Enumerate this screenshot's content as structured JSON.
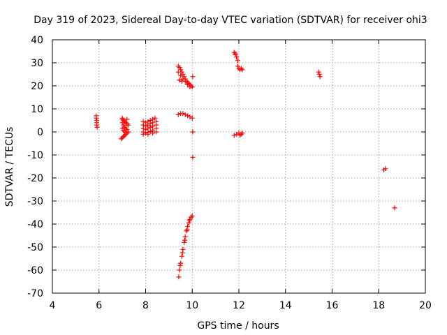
{
  "chart_data": {
    "type": "scatter",
    "title": "Day 319 of 2023, Sidereal Day-to-day VTEC variation (SDTVAR) for receiver ohi3",
    "xlabel": "GPS time / hours",
    "ylabel": "SDTVAR / TECUs",
    "xlim": [
      4,
      20
    ],
    "ylim": [
      -70,
      40
    ],
    "xticks": [
      "4",
      "6",
      "8",
      "10",
      "12",
      "14",
      "16",
      "18",
      "20"
    ],
    "yticks": [
      "40",
      "30",
      "20",
      "10",
      "0",
      "-10",
      "-20",
      "-30",
      "-40",
      "-50",
      "-60",
      "-70"
    ],
    "grid": true,
    "marker": "+",
    "color": "#ff0000",
    "series": [
      {
        "points": [
          [
            5.88,
            7.0
          ],
          [
            5.88,
            6.0
          ],
          [
            5.9,
            5.0
          ],
          [
            5.9,
            4.0
          ],
          [
            5.9,
            3.0
          ],
          [
            5.92,
            2.0
          ],
          [
            7.0,
            5.5
          ],
          [
            7.05,
            5.0
          ],
          [
            7.1,
            4.5
          ],
          [
            7.15,
            4.0
          ],
          [
            7.2,
            3.5
          ],
          [
            7.25,
            3.0
          ],
          [
            7.0,
            4.0
          ],
          [
            7.05,
            3.0
          ],
          [
            7.1,
            2.0
          ],
          [
            7.15,
            1.5
          ],
          [
            7.2,
            1.0
          ],
          [
            7.0,
            1.5
          ],
          [
            7.05,
            0.5
          ],
          [
            7.1,
            0.0
          ],
          [
            6.95,
            -3.0
          ],
          [
            7.0,
            -2.5
          ],
          [
            7.05,
            -2.0
          ],
          [
            7.1,
            -1.5
          ],
          [
            7.15,
            -1.0
          ],
          [
            7.2,
            -0.5
          ],
          [
            7.25,
            0.0
          ],
          [
            7.0,
            6.0
          ],
          [
            7.2,
            5.5
          ],
          [
            7.9,
            4.5
          ],
          [
            8.0,
            4.0
          ],
          [
            8.1,
            4.5
          ],
          [
            8.2,
            5.0
          ],
          [
            8.3,
            5.5
          ],
          [
            8.4,
            6.0
          ],
          [
            7.9,
            3.0
          ],
          [
            8.0,
            2.5
          ],
          [
            8.1,
            3.0
          ],
          [
            8.2,
            3.5
          ],
          [
            8.3,
            4.0
          ],
          [
            8.45,
            4.5
          ],
          [
            7.9,
            1.5
          ],
          [
            8.0,
            1.0
          ],
          [
            8.1,
            1.5
          ],
          [
            8.2,
            2.0
          ],
          [
            8.3,
            2.5
          ],
          [
            8.45,
            3.0
          ],
          [
            7.9,
            0.0
          ],
          [
            8.0,
            -0.5
          ],
          [
            8.1,
            -0.2
          ],
          [
            8.2,
            0.2
          ],
          [
            8.3,
            0.8
          ],
          [
            8.45,
            1.5
          ],
          [
            7.9,
            -1.0
          ],
          [
            8.1,
            -1.0
          ],
          [
            8.3,
            -0.5
          ],
          [
            8.45,
            0.0
          ],
          [
            9.4,
            28.5
          ],
          [
            9.45,
            28.0
          ],
          [
            9.5,
            27.0
          ],
          [
            9.55,
            26.0
          ],
          [
            9.6,
            25.0
          ],
          [
            9.65,
            24.0
          ],
          [
            9.7,
            23.0
          ],
          [
            9.75,
            22.0
          ],
          [
            9.8,
            21.5
          ],
          [
            9.85,
            21.0
          ],
          [
            9.9,
            20.5
          ],
          [
            9.95,
            20.0
          ],
          [
            10.0,
            19.5
          ],
          [
            9.4,
            26.0
          ],
          [
            9.5,
            24.5
          ],
          [
            9.6,
            23.0
          ],
          [
            9.7,
            22.0
          ],
          [
            9.8,
            20.5
          ],
          [
            9.9,
            19.5
          ],
          [
            9.45,
            22.5
          ],
          [
            9.55,
            22.0
          ],
          [
            10.02,
            24.0
          ],
          [
            9.4,
            7.5
          ],
          [
            9.5,
            8.0
          ],
          [
            9.6,
            8.0
          ],
          [
            9.7,
            7.5
          ],
          [
            9.8,
            7.0
          ],
          [
            9.9,
            6.5
          ],
          [
            10.0,
            6.0
          ],
          [
            10.02,
            0.0
          ],
          [
            10.02,
            -11.0
          ],
          [
            9.42,
            -63.0
          ],
          [
            9.45,
            -60.0
          ],
          [
            9.5,
            -57.0
          ],
          [
            9.55,
            -54.0
          ],
          [
            9.6,
            -51.0
          ],
          [
            9.65,
            -48.0
          ],
          [
            9.7,
            -45.5
          ],
          [
            9.75,
            -43.0
          ],
          [
            9.8,
            -41.0
          ],
          [
            9.85,
            -39.5
          ],
          [
            9.9,
            -38.0
          ],
          [
            9.95,
            -37.0
          ],
          [
            10.0,
            -36.5
          ],
          [
            9.48,
            -58.0
          ],
          [
            9.58,
            -52.5
          ],
          [
            9.68,
            -47.0
          ],
          [
            9.78,
            -42.5
          ],
          [
            9.88,
            -38.5
          ],
          [
            11.8,
            34.5
          ],
          [
            11.85,
            33.5
          ],
          [
            11.9,
            32.5
          ],
          [
            11.95,
            31.0
          ],
          [
            11.85,
            34.0
          ],
          [
            11.95,
            28.5
          ],
          [
            12.0,
            27.5
          ],
          [
            12.05,
            27.0
          ],
          [
            12.1,
            27.5
          ],
          [
            12.15,
            27.0
          ],
          [
            11.8,
            -1.5
          ],
          [
            11.9,
            -1.0
          ],
          [
            12.0,
            -0.5
          ],
          [
            12.05,
            -1.5
          ],
          [
            12.1,
            -1.0
          ],
          [
            12.15,
            -0.5
          ],
          [
            15.42,
            26.0
          ],
          [
            15.45,
            25.0
          ],
          [
            15.48,
            24.0
          ],
          [
            18.22,
            -16.5
          ],
          [
            18.28,
            -16.0
          ],
          [
            18.68,
            -33.0
          ]
        ]
      }
    ]
  }
}
